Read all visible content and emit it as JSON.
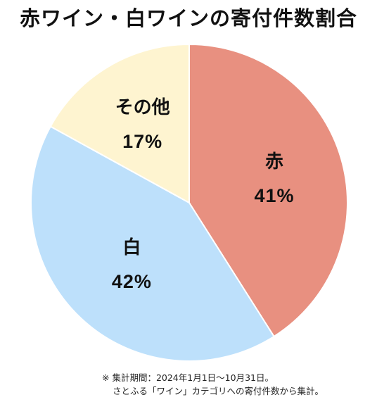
{
  "title": "赤ワイン・白ワインの寄付件数割合",
  "chart_data": {
    "type": "pie",
    "slices": [
      {
        "name": "赤",
        "value": 41,
        "label": "41%",
        "color": "#e89080"
      },
      {
        "name": "白",
        "value": 42,
        "label": "42%",
        "color": "#bde0fb"
      },
      {
        "name": "その他",
        "value": 17,
        "label": "17%",
        "color": "#fef4d0"
      }
    ],
    "start": "12 o'clock",
    "direction": "clockwise",
    "slice_border_color": "#ffffff",
    "legend": "none"
  },
  "note": {
    "line1": "※ 集計期間：2024年1月1日〜10月31日。",
    "line2": "さとふる「ワイン」カテゴリへの寄付件数から集計。"
  }
}
